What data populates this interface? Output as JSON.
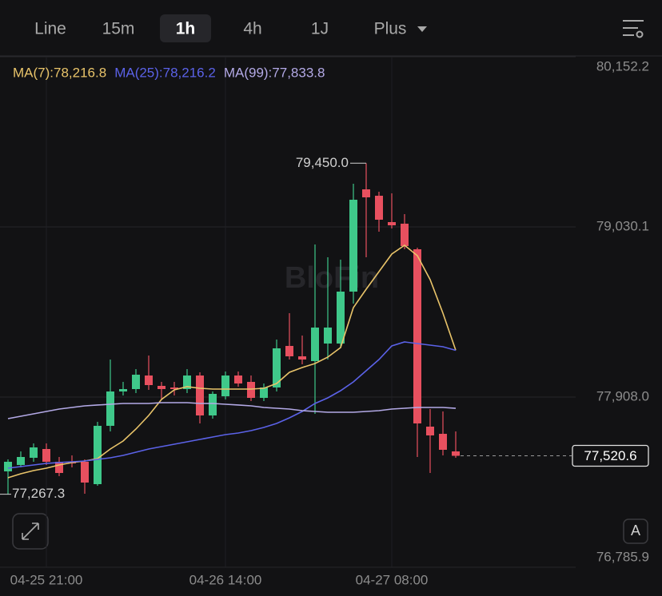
{
  "toolbar": {
    "tabs": [
      "Line",
      "15m",
      "1h",
      "4h",
      "1J",
      "Plus"
    ],
    "active": "1h"
  },
  "chart_data": {
    "type": "candlestick",
    "watermark": "BloFin",
    "categories": [
      null,
      null,
      null,
      "04-25 21:00",
      null,
      null,
      null,
      null,
      null,
      null,
      null,
      null,
      null,
      null,
      null,
      null,
      null,
      "04-26 14:00",
      null,
      null,
      null,
      null,
      null,
      null,
      null,
      null,
      null,
      null,
      null,
      null,
      "04-27 08:00",
      null,
      null,
      null,
      null,
      null
    ],
    "open": [
      77418.1,
      77460.3,
      77507.6,
      77565.6,
      77481.3,
      77481.3,
      77481.3,
      77333.8,
      77718.4,
      77944.9,
      77960.7,
      78050.2,
      77981.8,
      77971.2,
      77960.7,
      78050.2,
      77786.8,
      77913.3,
      78050.2,
      78008.1,
      77902.7,
      77971.2,
      78245.2,
      78176.7,
      78145.1,
      78261.0,
      78261.0,
      78603.4,
      79277.7,
      79235.5,
      79061.7,
      79051.2,
      78882.6,
      77713.1,
      77665.7,
      77549.8
    ],
    "high": [
      77497.1,
      77549.8,
      77602.5,
      77602.5,
      77512.9,
      77523.4,
      77497.1,
      77744.7,
      78155.6,
      78008.1,
      78092.4,
      78181.9,
      78008.1,
      78008.1,
      78092.4,
      78071.3,
      77944.9,
      78076.6,
      78076.6,
      78050.2,
      77997.6,
      78287.3,
      78461.1,
      78313.6,
      78914.2,
      78829.9,
      78814.1,
      79314.6,
      79450.0,
      79261.9,
      79251.3,
      79114.4,
      78893.1,
      77829.0,
      77813.2,
      77681.5
    ],
    "low": [
      77267.3,
      77444.4,
      77481.3,
      77460.3,
      77386.5,
      77444.4,
      77270.6,
      77323.3,
      77681.5,
      77918.5,
      77934.3,
      77955.4,
      77892.2,
      77918.5,
      77934.3,
      77734.2,
      77765.8,
      77892.2,
      77976.5,
      77881.7,
      77881.7,
      77944.9,
      78155.6,
      78124.0,
      77797.4,
      78155.6,
      78229.4,
      78524.4,
      78829.9,
      78998.5,
      79019.6,
      78882.6,
      77512.9,
      77407.5,
      77523.4,
      77507.6
    ],
    "close": [
      77481.3,
      77512.9,
      77576.1,
      77481.3,
      77407.5,
      77470.8,
      77344.3,
      77718.4,
      77944.9,
      77960.7,
      78055.5,
      77987.0,
      77960.7,
      77960.7,
      78050.2,
      77786.8,
      77929.1,
      78050.2,
      77997.6,
      77902.7,
      77971.2,
      78229.4,
      78176.7,
      78155.6,
      78366.3,
      78366.3,
      78603.4,
      79209.2,
      79225.0,
      79077.5,
      79040.6,
      78903.7,
      77734.2,
      77655.1,
      77560.3,
      77520.6
    ],
    "up_color": "#3fc88a",
    "down_color": "#e8505f",
    "max_label": "79,450.0",
    "min_label": "77,267.3",
    "last_label": "77,520.6",
    "overlays": [
      {
        "legend": "MA(7):78,216.8",
        "color": "#e9c46a",
        "values": [
          77375.9,
          77402.3,
          77423.3,
          77439.2,
          77460.3,
          77476.1,
          77486.6,
          77502.4,
          77565.6,
          77618.3,
          77697.3,
          77786.8,
          77892.2,
          77955.4,
          77976.5,
          77966.0,
          77960.7,
          77960.7,
          77960.7,
          77960.7,
          77966.0,
          77997.6,
          78071.3,
          78102.9,
          78129.3,
          78171.4,
          78234.6,
          78498.0,
          78619.2,
          78735.1,
          78851.0,
          78908.9,
          78840.4,
          78682.4,
          78461.1,
          78216.8
        ]
      },
      {
        "legend": "MA(25):78,216.2",
        "color": "#5b62e8",
        "values": [
          77439.2,
          77449.7,
          77460.3,
          77470.8,
          77476.1,
          77481.3,
          77486.6,
          77497.1,
          77507.6,
          77523.4,
          77544.5,
          77565.6,
          77581.4,
          77597.2,
          77613.0,
          77628.8,
          77644.6,
          77660.4,
          77670.9,
          77686.7,
          77707.8,
          77734.2,
          77771.0,
          77813.2,
          77865.9,
          77902.7,
          77950.1,
          78008.1,
          78081.8,
          78155.6,
          78245.2,
          78271.5,
          78261.0,
          78250.4,
          78239.9,
          78216.2
        ]
      },
      {
        "legend": "MA(99):77,833.8",
        "color": "#b3a9e6",
        "values": [
          77765.8,
          77781.6,
          77797.4,
          77813.2,
          77829.0,
          77839.5,
          77850.1,
          77855.4,
          77860.6,
          77865.9,
          77865.9,
          77865.9,
          77871.1,
          77871.1,
          77871.1,
          77865.9,
          77865.9,
          77860.6,
          77855.4,
          77850.1,
          77839.5,
          77834.3,
          77829.0,
          77818.4,
          77813.2,
          77807.9,
          77807.9,
          77807.9,
          77813.2,
          77818.4,
          77829.0,
          77834.3,
          77839.5,
          77839.5,
          77839.5,
          77833.8
        ]
      }
    ],
    "ylim": [
      76785.9,
      80152.2
    ],
    "yticks": [
      {
        "value": 76785.9,
        "label": "76,785.9"
      },
      {
        "value": 77908.0,
        "label": "77,908.0"
      },
      {
        "value": 79030.1,
        "label": "79,030.1"
      },
      {
        "value": 80152.2,
        "label": "80,152.2"
      }
    ],
    "grid": true,
    "corner_button": "A"
  }
}
